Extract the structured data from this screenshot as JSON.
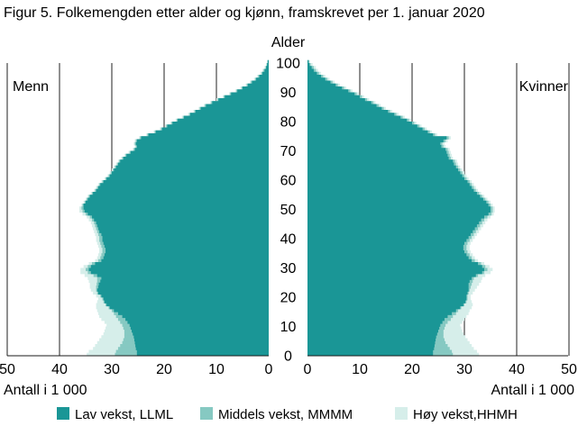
{
  "chart_data": {
    "type": "population_pyramid",
    "title": "Figur 5. Folkemengden etter alder og kjønn, framskrevet per 1. januar 2020",
    "age_axis_label": "Alder",
    "x_axis_label_left": "Antall i 1 000",
    "x_axis_label_right": "Antall i 1 000",
    "left_group_label": "Menn",
    "right_group_label": "Kvinner",
    "x_ticks": [
      0,
      10,
      20,
      30,
      40,
      50
    ],
    "age_ticks": [
      0,
      10,
      20,
      30,
      40,
      50,
      60,
      70,
      80,
      90,
      100
    ],
    "xlim": [
      0,
      50
    ],
    "ylim": [
      0,
      100
    ],
    "grid_x": true,
    "legend_position": "bottom",
    "colors": {
      "low": "#1a9696",
      "mid": "#86c9c2",
      "high": "#d6eeea"
    },
    "series": [
      {
        "key": "low",
        "name": "Lav vekst, LLML"
      },
      {
        "key": "mid",
        "name": "Middels vekst, MMMM"
      },
      {
        "key": "high",
        "name": "Høy vekst,HHMH"
      }
    ],
    "ages": [
      0,
      1,
      2,
      3,
      4,
      5,
      6,
      7,
      8,
      9,
      10,
      11,
      12,
      13,
      14,
      15,
      16,
      17,
      18,
      19,
      20,
      21,
      22,
      23,
      24,
      25,
      26,
      27,
      28,
      29,
      30,
      31,
      32,
      33,
      34,
      35,
      36,
      37,
      38,
      39,
      40,
      41,
      42,
      43,
      44,
      45,
      46,
      47,
      48,
      49,
      50,
      51,
      52,
      53,
      54,
      55,
      56,
      57,
      58,
      59,
      60,
      61,
      62,
      63,
      64,
      65,
      66,
      67,
      68,
      69,
      70,
      71,
      72,
      73,
      74,
      75,
      76,
      77,
      78,
      79,
      80,
      81,
      82,
      83,
      84,
      85,
      86,
      87,
      88,
      89,
      90,
      91,
      92,
      93,
      94,
      95,
      96,
      97,
      98,
      99,
      100
    ],
    "men": {
      "low": [
        25.2,
        25.2,
        25.4,
        25.5,
        25.6,
        25.7,
        25.8,
        26,
        26.2,
        26.4,
        26.6,
        27,
        27.4,
        28,
        28.8,
        29.6,
        30.4,
        31,
        31.4,
        31.6,
        32,
        32.6,
        32.8,
        32.6,
        32.5,
        32.2,
        32,
        32.8,
        34,
        34.4,
        34,
        33.2,
        32,
        31.6,
        31.4,
        31.2,
        31.2,
        31.4,
        31.6,
        31.8,
        31.8,
        32,
        32.4,
        32.6,
        32.8,
        33,
        33.4,
        33.8,
        34.6,
        35.2,
        35.4,
        35.4,
        35,
        34.6,
        34.2,
        33.6,
        33,
        32.6,
        32.2,
        31.6,
        31,
        30.4,
        30,
        29.6,
        29.2,
        28.8,
        28.4,
        27.8,
        27.2,
        26.4,
        25.6,
        25.2,
        25.4,
        25.2,
        24.4,
        23,
        21.6,
        20.4,
        19.4,
        18.4,
        17.4,
        16.2,
        15,
        14,
        13,
        12,
        10.8,
        9.6,
        8.4,
        7.2,
        6,
        5,
        4,
        3.2,
        2.4,
        1.8,
        1.2,
        0.8,
        0.5,
        0.3,
        0.2
      ],
      "mid": [
        29.4,
        29.2,
        28.8,
        28.4,
        28,
        27.8,
        27.6,
        27.6,
        27.6,
        27.8,
        28,
        28.4,
        28.8,
        29.2,
        29.6,
        30,
        30.6,
        31.2,
        31.6,
        31.8,
        32.2,
        32.8,
        33,
        33,
        32.9,
        32.8,
        32.8,
        33.5,
        34.6,
        35,
        34.6,
        33.8,
        32.6,
        32.2,
        32,
        31.8,
        31.8,
        32,
        32.2,
        32.4,
        32.4,
        32.6,
        32.8,
        33,
        33.2,
        33.4,
        33.8,
        34.2,
        35,
        35.6,
        35.8,
        35.6,
        35.2,
        34.8,
        34.4,
        33.8,
        33.2,
        32.8,
        32.4,
        31.8,
        31.2,
        30.6,
        30.2,
        29.8,
        29.4,
        29,
        28.6,
        28,
        27.4,
        26.6,
        25.8,
        25.4,
        25.6,
        25.4,
        24.6,
        23.2,
        21.8,
        20.6,
        19.6,
        18.6,
        17.6,
        16.4,
        15.2,
        14.2,
        13.2,
        12.2,
        11,
        9.8,
        8.6,
        7.4,
        6.2,
        5.2,
        4.2,
        3.4,
        2.6,
        2,
        1.4,
        1,
        0.6,
        0.4,
        0.2
      ],
      "high": [
        34.8,
        34.4,
        33.6,
        33.2,
        32.8,
        32.4,
        32,
        31.6,
        31.4,
        31.2,
        31,
        31.4,
        32,
        32.4,
        32.6,
        32.8,
        33,
        33,
        32.8,
        32.6,
        33,
        33.6,
        34,
        34.2,
        34.2,
        34.4,
        34.6,
        35.2,
        36,
        36,
        35.4,
        34.4,
        33.2,
        32.8,
        32.6,
        32.4,
        32.4,
        32.6,
        32.8,
        33,
        33,
        33.2,
        33.4,
        33.6,
        33.8,
        34,
        34.4,
        34.8,
        35.6,
        36.2,
        36.2,
        35.8,
        35.4,
        35,
        34.6,
        34,
        33.4,
        33,
        32.6,
        32,
        31.4,
        30.8,
        30.4,
        30,
        29.6,
        29.2,
        28.8,
        28.2,
        27.6,
        26.8,
        26,
        25.6,
        25.8,
        25.6,
        24.8,
        23.4,
        22,
        20.8,
        19.8,
        18.8,
        17.8,
        16.6,
        15.4,
        14.4,
        13.4,
        12.4,
        11.2,
        10,
        8.8,
        7.6,
        6.4,
        5.4,
        4.4,
        3.6,
        2.8,
        2.2,
        1.6,
        1.2,
        0.8,
        0.5,
        0.3
      ]
    },
    "women": {
      "low": [
        24,
        24,
        24.2,
        24.3,
        24.4,
        24.5,
        24.6,
        24.8,
        25,
        25.2,
        25.4,
        25.8,
        26.2,
        26.8,
        27.6,
        28.4,
        29.2,
        29.8,
        30.2,
        30.4,
        30.4,
        30.6,
        30.8,
        30.8,
        30.8,
        31,
        31.4,
        32.2,
        33.4,
        33.8,
        33.4,
        32.6,
        31.4,
        30.8,
        30.4,
        30,
        29.8,
        29.8,
        30,
        30.4,
        30.8,
        31.2,
        31.6,
        32,
        32.4,
        32.8,
        33.2,
        33.8,
        34.6,
        35,
        35,
        34.6,
        34.2,
        33.6,
        33,
        32.4,
        31.8,
        31.4,
        31,
        30.6,
        30,
        29.6,
        29.2,
        28.8,
        28.4,
        28,
        27.8,
        27,
        26.8,
        26.6,
        26.4,
        25.6,
        25.4,
        26,
        26.6,
        24,
        23,
        22,
        21,
        20,
        19,
        17.8,
        16.6,
        15.4,
        14.2,
        13.2,
        12.2,
        11,
        10,
        9,
        7.8,
        6.6,
        5.4,
        4.4,
        3.4,
        2.6,
        1.8,
        1.2,
        0.8,
        0.4,
        0.2
      ],
      "mid": [
        27.8,
        27.6,
        27.2,
        26.8,
        26.4,
        26.2,
        26,
        26,
        26,
        26.2,
        26.4,
        26.8,
        27.4,
        27.8,
        28.4,
        28.8,
        29.4,
        30,
        30.4,
        30.6,
        30.6,
        30.8,
        31,
        31.2,
        31.4,
        31.6,
        31.8,
        32.6,
        33.8,
        34.4,
        34,
        33.2,
        32,
        31.4,
        31,
        30.6,
        30.4,
        30.4,
        30.6,
        31,
        31.4,
        31.8,
        32.2,
        32.6,
        33,
        33.4,
        33.8,
        34.4,
        35.2,
        35.4,
        35.4,
        35,
        34.6,
        34,
        33.4,
        32.8,
        32.2,
        31.8,
        31.4,
        31,
        30.4,
        30,
        29.6,
        29.2,
        28.8,
        28.4,
        28.2,
        27.4,
        27.2,
        27,
        26.8,
        26,
        25.8,
        26.4,
        27,
        24.4,
        23.4,
        22.4,
        21.4,
        20.4,
        19.4,
        18.2,
        17,
        15.8,
        14.6,
        13.6,
        12.6,
        11.4,
        10.4,
        9.4,
        8.2,
        7,
        5.8,
        4.8,
        3.8,
        3,
        2.2,
        1.6,
        1.2,
        0.6,
        0.3
      ],
      "high": [
        32.8,
        32.4,
        31.8,
        31.4,
        31,
        30.6,
        30.2,
        29.8,
        29.6,
        29.4,
        29.2,
        29.6,
        30,
        30.4,
        30.8,
        31,
        31.4,
        31.6,
        31.4,
        31.2,
        31.2,
        31.6,
        32,
        32.4,
        32.8,
        33.2,
        33.4,
        34,
        35,
        35.4,
        34.8,
        33.8,
        32.6,
        32,
        31.6,
        31.2,
        31,
        31,
        31.2,
        31.6,
        32,
        32.4,
        32.8,
        33.2,
        33.6,
        34,
        34.4,
        35,
        35.6,
        35.8,
        35.8,
        35.4,
        35,
        34.4,
        33.8,
        33.2,
        32.6,
        32.2,
        31.8,
        31.4,
        30.8,
        30.4,
        30,
        29.6,
        29.2,
        28.8,
        28.6,
        27.8,
        27.6,
        27.4,
        27.2,
        26.4,
        26.2,
        26.8,
        27.4,
        24.8,
        23.8,
        22.8,
        21.8,
        20.8,
        19.8,
        18.6,
        17.4,
        16.2,
        15,
        14,
        13,
        11.8,
        10.8,
        9.8,
        8.6,
        7.4,
        6.2,
        5.2,
        4.2,
        3.4,
        2.6,
        2,
        1.6,
        1,
        0.5
      ]
    }
  }
}
